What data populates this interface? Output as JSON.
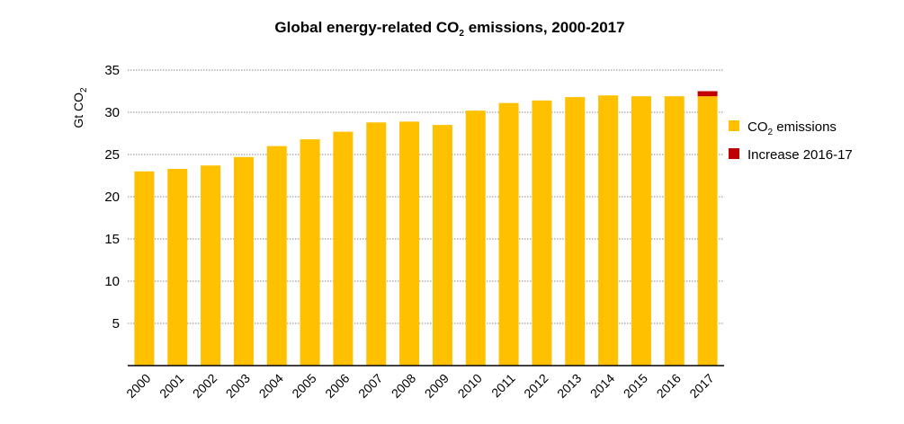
{
  "chart_data": {
    "type": "bar",
    "stacked": true,
    "title": "Global energy-related CO2 emissions, 2000-2017",
    "title_parts": {
      "pre": "Global energy-related CO",
      "sub": "2",
      "post": " emissions, 2000-2017"
    },
    "xlabel": "",
    "ylabel": "Gt CO2",
    "ylabel_parts": {
      "pre": "Gt CO",
      "sub": "2"
    },
    "ylim": [
      0,
      35
    ],
    "yticks": [
      5,
      10,
      15,
      20,
      25,
      30,
      35
    ],
    "grid": true,
    "legend_position": "right",
    "categories": [
      "2000",
      "2001",
      "2002",
      "2003",
      "2004",
      "2005",
      "2006",
      "2007",
      "2008",
      "2009",
      "2010",
      "2011",
      "2012",
      "2013",
      "2014",
      "2015",
      "2016",
      "2017"
    ],
    "series": [
      {
        "name": "CO2 emissions",
        "label_parts": {
          "pre": "CO",
          "sub": "2",
          "post": " emissions"
        },
        "color": "#FFC000",
        "values": [
          23.0,
          23.3,
          23.7,
          24.7,
          26.0,
          26.8,
          27.7,
          28.8,
          28.9,
          28.5,
          30.2,
          31.1,
          31.4,
          31.8,
          32.0,
          31.9,
          31.9,
          31.9
        ]
      },
      {
        "name": "Increase 2016-17",
        "label_parts": {
          "pre": "Increase 2016-17",
          "sub": "",
          "post": ""
        },
        "color": "#C00000",
        "values": [
          0,
          0,
          0,
          0,
          0,
          0,
          0,
          0,
          0,
          0,
          0,
          0,
          0,
          0,
          0,
          0,
          0,
          0.6
        ]
      }
    ]
  }
}
